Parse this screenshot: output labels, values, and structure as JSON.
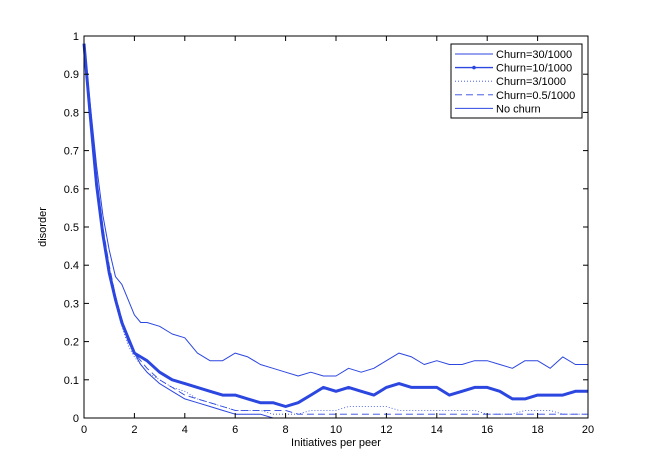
{
  "chart_data": {
    "type": "line",
    "title": "",
    "xlabel": "Initiatives per peer",
    "ylabel": "disorder",
    "xlim": [
      0,
      20
    ],
    "ylim": [
      0,
      1
    ],
    "x_ticks": [
      "0",
      "2",
      "4",
      "6",
      "8",
      "10",
      "12",
      "14",
      "16",
      "18",
      "20"
    ],
    "y_ticks": [
      "0",
      "0.1",
      "0.2",
      "0.3",
      "0.4",
      "0.5",
      "0.6",
      "0.7",
      "0.8",
      "0.9",
      "1"
    ],
    "grid": false,
    "legend_position": "top-right",
    "line_color": "#2c46e0",
    "series": [
      {
        "name": "Churn=30/1000",
        "style": "solid-thin",
        "x": [
          0,
          0.25,
          0.5,
          0.75,
          1,
          1.25,
          1.5,
          1.75,
          2,
          2.25,
          2.5,
          3,
          3.5,
          4,
          4.5,
          5,
          5.5,
          6,
          6.5,
          7,
          7.5,
          8,
          8.5,
          9,
          9.5,
          10,
          10.5,
          11,
          11.5,
          12,
          12.5,
          13,
          13.5,
          14,
          14.5,
          15,
          15.5,
          16,
          16.5,
          17,
          17.5,
          18,
          18.5,
          19,
          19.5,
          20
        ],
        "y": [
          0.98,
          0.82,
          0.66,
          0.53,
          0.44,
          0.37,
          0.35,
          0.31,
          0.27,
          0.25,
          0.25,
          0.24,
          0.22,
          0.21,
          0.17,
          0.15,
          0.15,
          0.17,
          0.16,
          0.14,
          0.13,
          0.12,
          0.11,
          0.12,
          0.11,
          0.11,
          0.13,
          0.12,
          0.13,
          0.15,
          0.17,
          0.16,
          0.14,
          0.15,
          0.14,
          0.14,
          0.15,
          0.15,
          0.14,
          0.13,
          0.15,
          0.15,
          0.13,
          0.16,
          0.14,
          0.14
        ]
      },
      {
        "name": "Churn=10/1000",
        "style": "solid-thick",
        "x": [
          0,
          0.25,
          0.5,
          0.75,
          1,
          1.25,
          1.5,
          1.75,
          2,
          2.25,
          2.5,
          3,
          3.5,
          4,
          4.5,
          5,
          5.5,
          6,
          6.5,
          7,
          7.5,
          8,
          8.5,
          9,
          9.5,
          10,
          10.5,
          11,
          11.5,
          12,
          12.5,
          13,
          13.5,
          14,
          14.5,
          15,
          15.5,
          16,
          16.5,
          17,
          17.5,
          18,
          18.5,
          19,
          19.5,
          20
        ],
        "y": [
          0.98,
          0.79,
          0.61,
          0.48,
          0.38,
          0.31,
          0.25,
          0.21,
          0.17,
          0.16,
          0.15,
          0.12,
          0.1,
          0.09,
          0.08,
          0.07,
          0.06,
          0.06,
          0.05,
          0.04,
          0.04,
          0.03,
          0.04,
          0.06,
          0.08,
          0.07,
          0.08,
          0.07,
          0.06,
          0.08,
          0.09,
          0.08,
          0.08,
          0.08,
          0.06,
          0.07,
          0.08,
          0.08,
          0.07,
          0.05,
          0.05,
          0.06,
          0.06,
          0.06,
          0.07,
          0.07
        ]
      },
      {
        "name": "Churn=3/1000",
        "style": "dotted",
        "x": [
          0,
          0.25,
          0.5,
          0.75,
          1,
          1.25,
          1.5,
          1.75,
          2,
          2.25,
          2.5,
          3,
          3.5,
          4,
          4.5,
          5,
          5.5,
          6,
          6.5,
          7,
          7.5,
          8,
          8.5,
          9,
          9.5,
          10,
          10.5,
          11,
          11.5,
          12,
          12.5,
          13,
          13.5,
          14,
          14.5,
          15,
          15.5,
          16,
          16.5,
          17,
          17.5,
          18,
          18.5,
          19,
          19.5,
          20
        ],
        "y": [
          0.98,
          0.78,
          0.6,
          0.47,
          0.37,
          0.3,
          0.24,
          0.19,
          0.16,
          0.14,
          0.12,
          0.1,
          0.08,
          0.07,
          0.05,
          0.04,
          0.03,
          0.02,
          0.02,
          0.02,
          0.01,
          0.01,
          0.01,
          0.02,
          0.02,
          0.02,
          0.03,
          0.03,
          0.03,
          0.03,
          0.02,
          0.02,
          0.02,
          0.02,
          0.02,
          0.02,
          0.02,
          0.01,
          0.01,
          0.01,
          0.02,
          0.02,
          0.02,
          0.01,
          0.01,
          0.01
        ]
      },
      {
        "name": "Churn=0.5/1000",
        "style": "dashed",
        "x": [
          0,
          0.25,
          0.5,
          0.75,
          1,
          1.25,
          1.5,
          1.75,
          2,
          2.25,
          2.5,
          3,
          3.5,
          4,
          4.5,
          5,
          5.5,
          6,
          6.5,
          7,
          7.5,
          8,
          8.5,
          9,
          9.5,
          10,
          10.5,
          11,
          11.5,
          12,
          12.5,
          13,
          13.5,
          14,
          14.5,
          15,
          15.5,
          16,
          16.5,
          17,
          17.5,
          18,
          18.5,
          19,
          19.5,
          20
        ],
        "y": [
          0.98,
          0.8,
          0.63,
          0.5,
          0.4,
          0.32,
          0.26,
          0.21,
          0.17,
          0.15,
          0.13,
          0.1,
          0.08,
          0.06,
          0.05,
          0.04,
          0.03,
          0.02,
          0.02,
          0.02,
          0.02,
          0.02,
          0.01,
          0.01,
          0.01,
          0.01,
          0.01,
          0.01,
          0.01,
          0.01,
          0.01,
          0.01,
          0.01,
          0.01,
          0.01,
          0.01,
          0.01,
          0.01,
          0.01,
          0.01,
          0.01,
          0.01,
          0.01,
          0.01,
          0.01,
          0.01
        ]
      },
      {
        "name": "No churn",
        "style": "solid-thin",
        "x": [
          0,
          0.25,
          0.5,
          0.75,
          1,
          1.25,
          1.5,
          1.75,
          2,
          2.25,
          2.5,
          3,
          3.5,
          4,
          4.5,
          5,
          5.5,
          6,
          6.5,
          7,
          7.5,
          8,
          8.5,
          9,
          9.5,
          10,
          10.5,
          11,
          11.5,
          12,
          12.5,
          13,
          13.5,
          14,
          14.5,
          15,
          15.5,
          16,
          16.5,
          17,
          17.5,
          18,
          18.5,
          19,
          19.5,
          20
        ],
        "y": [
          0.98,
          0.79,
          0.62,
          0.49,
          0.39,
          0.31,
          0.25,
          0.2,
          0.17,
          0.14,
          0.12,
          0.09,
          0.07,
          0.05,
          0.04,
          0.03,
          0.02,
          0.01,
          0.01,
          0.01,
          0.0,
          0.0,
          0.0,
          0.0,
          0.0,
          0.0,
          0.0,
          0.0,
          0.0,
          0.0,
          0.0,
          0.0,
          0.0,
          0.0,
          0.0,
          0.0,
          0.0,
          0.0,
          0.0,
          0.0,
          0.0,
          0.0,
          0.0,
          0.0,
          0.0,
          0.0
        ]
      }
    ]
  }
}
